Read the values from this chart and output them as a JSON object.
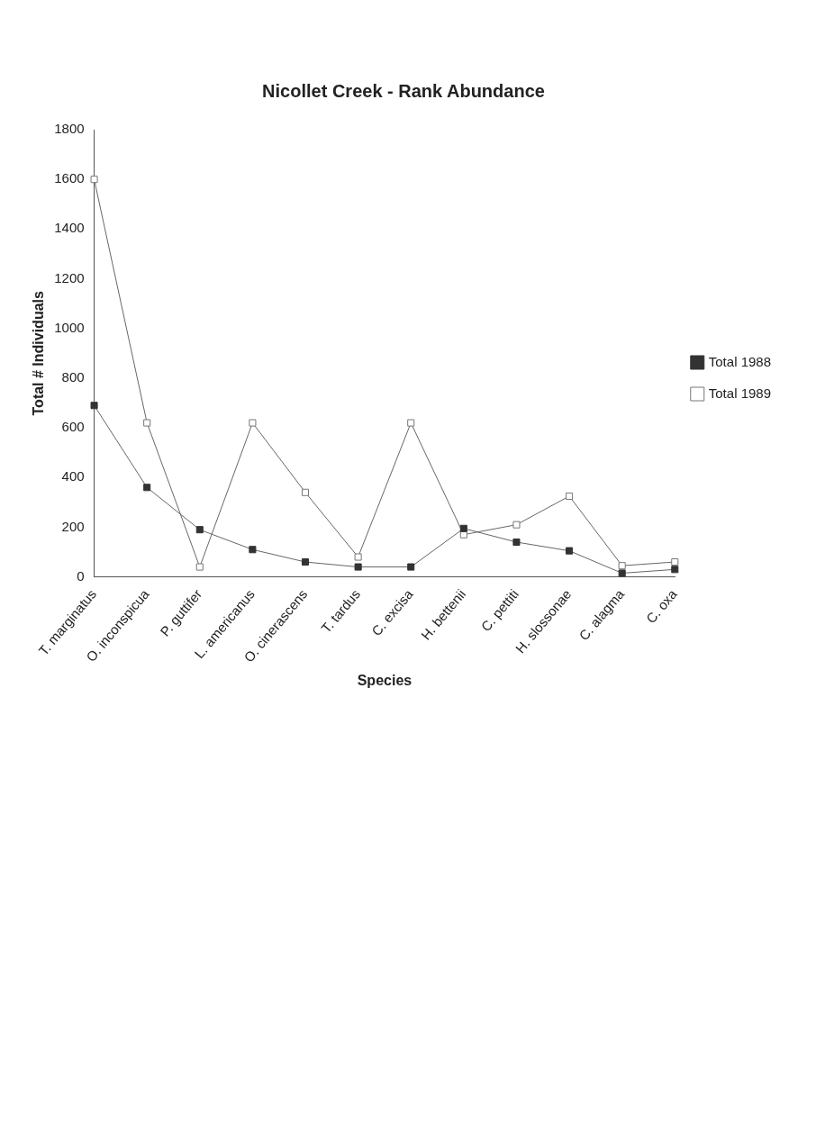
{
  "chart_data": {
    "type": "line",
    "title": "Nicollet Creek - Rank Abundance",
    "xlabel": "Species",
    "ylabel": "Total # Individuals",
    "categories": [
      "T. marginatus",
      "O. inconspicua",
      "P. guttifer",
      "L. americanus",
      "O. cinerascens",
      "T. tardus",
      "C. excisa",
      "H. bettenii",
      "C. pettiti",
      "H. slossonae",
      "C. alagma",
      "C. oxa"
    ],
    "series": [
      {
        "name": "Total 1988",
        "color": "#333333",
        "marker": "square",
        "values": [
          690,
          360,
          190,
          110,
          60,
          40,
          40,
          195,
          140,
          105,
          15,
          30
        ]
      },
      {
        "name": "Total 1989",
        "color": "#777777",
        "marker": "square",
        "values": [
          1600,
          620,
          40,
          620,
          340,
          80,
          620,
          170,
          210,
          325,
          45,
          60
        ]
      }
    ],
    "ylim": [
      0,
      1800
    ],
    "yticks": [
      0,
      200,
      400,
      600,
      800,
      1000,
      1200,
      1400,
      1600,
      1800
    ],
    "grid": false,
    "legend": "right"
  }
}
